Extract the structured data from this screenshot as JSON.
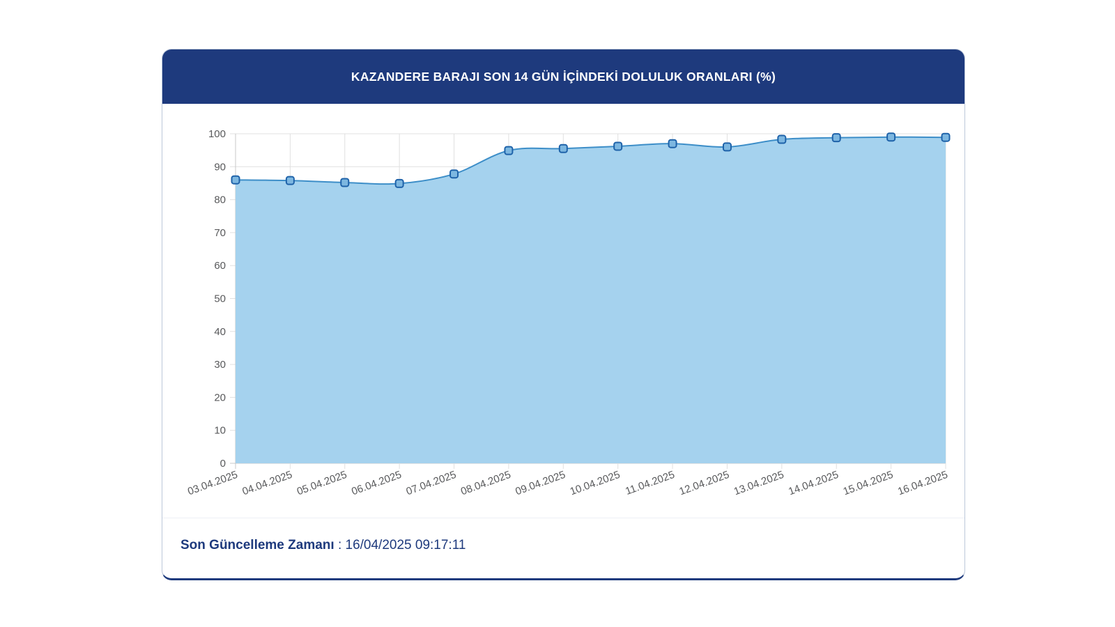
{
  "card": {
    "header": {
      "title": "KAZANDERE BARAJI SON 14 GÜN İÇİNDEKİ DOLULUK ORANLARI (%)",
      "background": "#1e3a7d",
      "text_color": "#ffffff"
    },
    "footer": {
      "label": "Son Güncelleme Zamanı",
      "separator": " : ",
      "value": "16/04/2025 09:17:11",
      "text_color": "#1e3a7d"
    }
  },
  "chart_data": {
    "type": "area",
    "title": "KAZANDERE BARAJI SON 14 GÜN İÇİNDEKİ DOLULUK ORANLARI (%)",
    "xlabel": "",
    "ylabel": "",
    "categories": [
      "03.04.2025",
      "04.04.2025",
      "05.04.2025",
      "06.04.2025",
      "07.04.2025",
      "08.04.2025",
      "09.04.2025",
      "10.04.2025",
      "11.04.2025",
      "12.04.2025",
      "13.04.2025",
      "14.04.2025",
      "15.04.2025",
      "16.04.2025"
    ],
    "values": [
      86.0,
      85.8,
      85.2,
      84.9,
      87.8,
      94.9,
      95.5,
      96.2,
      97.0,
      96.0,
      98.3,
      98.8,
      99.0,
      98.9
    ],
    "ylim": [
      0,
      100
    ],
    "yticks": [
      0,
      10,
      20,
      30,
      40,
      50,
      60,
      70,
      80,
      90,
      100
    ],
    "grid": true,
    "legend": false,
    "x_label_rotation": -20,
    "colors": {
      "line": "#3d8ec8",
      "fill": "#a5d2ee",
      "marker_stroke": "#1e62a9",
      "marker_fill": "#7db7e0",
      "gridline": "#e0e0e0",
      "axis_line": "#c9c9c9",
      "axis_label": "#58595b"
    }
  }
}
